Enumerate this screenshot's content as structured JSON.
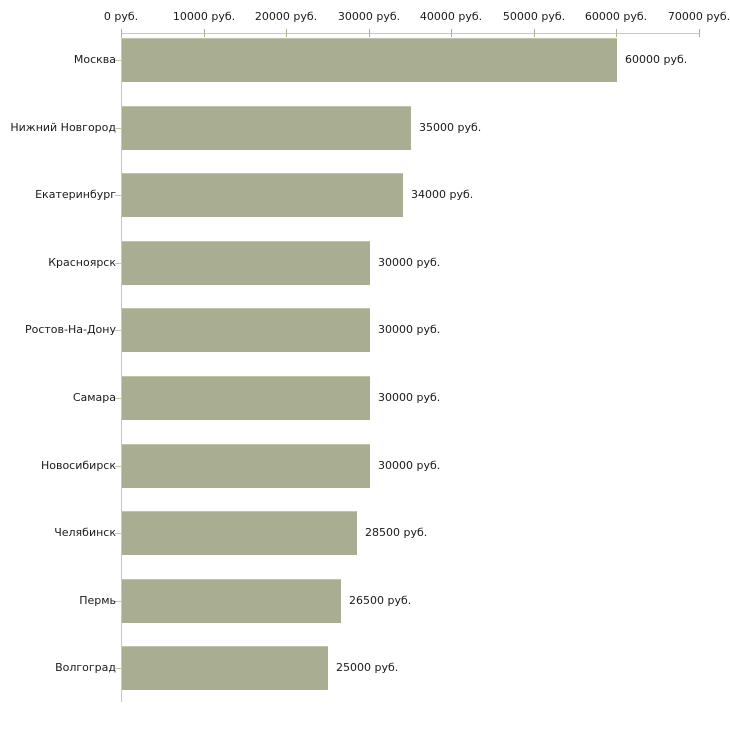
{
  "chart_data": {
    "type": "bar",
    "orientation": "horizontal",
    "title": "",
    "xlabel": "",
    "ylabel": "",
    "unit": "руб.",
    "categories": [
      "Москва",
      "Нижний Новгород",
      "Екатеринбург",
      "Красноярск",
      "Ростов-На-Дону",
      "Самара",
      "Новосибирск",
      "Челябинск",
      "Пермь",
      "Волгоград"
    ],
    "values": [
      60000,
      35000,
      34000,
      30000,
      30000,
      30000,
      30000,
      28500,
      26500,
      25000
    ],
    "value_labels": [
      "60000 руб.",
      "35000 руб.",
      "34000 руб.",
      "30000 руб.",
      "30000 руб.",
      "30000 руб.",
      "30000 руб.",
      "28500 руб.",
      "26500 руб.",
      "25000 руб."
    ],
    "x_axis": {
      "position": "top",
      "xlim": [
        0,
        70000
      ],
      "ticks": [
        0,
        10000,
        20000,
        30000,
        40000,
        50000,
        60000,
        70000
      ],
      "tick_labels": [
        "0 руб.",
        "10000 руб.",
        "20000 руб.",
        "30000 руб.",
        "40000 руб.",
        "50000 руб.",
        "60000 руб.",
        "70000 руб."
      ]
    },
    "grid": false,
    "legend": null,
    "colors": {
      "bar_fill": "#a9ae93",
      "bar_top_edge": "#c0c4a9",
      "axis_line": "#c6c6c6",
      "x_tick_mark": "#b3b384",
      "y_tick_mark": "#c6c8ab",
      "text": "#1a1a1a",
      "background": "#ffffff"
    }
  }
}
